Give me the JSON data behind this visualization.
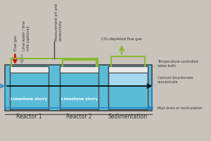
{
  "bg_color": "#c8c4bc",
  "water_bath_color": "#5bbcd8",
  "reactor_fill": "#5bbcd8",
  "sedimentation_top": "#a8d8f0",
  "white_top": "#e8e8e8",
  "reactor_border": "#444444",
  "green_line": "#8ab832",
  "red_arrow": "#cc1111",
  "gray_arrow": "#999999",
  "blue_arrow": "#2288cc",
  "text_dark": "#333333",
  "reactor1_label": "Reactor 1",
  "reactor2_label": "Reactor 2",
  "sedimentation_label": "Sedimentation",
  "limestone1": "Limestone slurry",
  "limestone2": "Limestone slurry",
  "flue_gas": "Flue gas",
  "lime_water": "Lime water / lime\nmilk (optional)",
  "measurement": "Measurement pH and\nconductivity",
  "co2_depleted": "CO₂-depleted flue gas",
  "temp_controlled": "Temperature-controlled\nwater-bath",
  "calcium_bic": "Calcium bicarbonate\nconcentrate",
  "mud_drain": "Mud drain or recirculation"
}
